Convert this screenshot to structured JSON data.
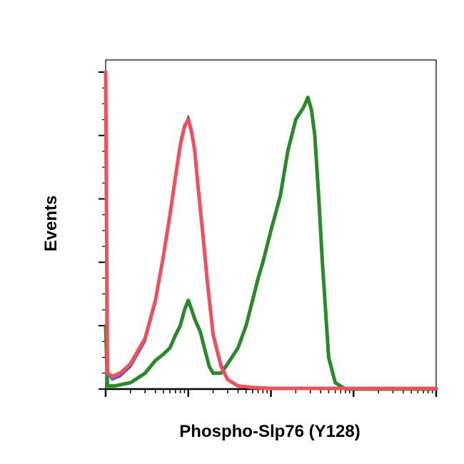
{
  "chart_data": {
    "type": "line",
    "title": "",
    "xlabel": "Phospho-Slp76 (Y128)",
    "ylabel": "Events",
    "xscale": "log",
    "xlim": [
      1,
      10000
    ],
    "ylim": [
      0,
      100
    ],
    "grid": false,
    "legend": "none",
    "series": [
      {
        "color": "#5b4fd9",
        "x": [
          1,
          1.05,
          1.2,
          1.5,
          2,
          3,
          4,
          5,
          6,
          7,
          8,
          9,
          10,
          11,
          12,
          13,
          15,
          17,
          20,
          25,
          30,
          40,
          60,
          100,
          10000
        ],
        "y": [
          100,
          5,
          3,
          4,
          7,
          15,
          27,
          41,
          54,
          66,
          76,
          82,
          86,
          82,
          76,
          66,
          50,
          35,
          18,
          8,
          3,
          1,
          0.5,
          0.2,
          0.2
        ]
      },
      {
        "color": "#2a8a2a",
        "x": [
          1,
          1.05,
          1.3,
          2,
          3,
          4,
          5,
          6,
          7,
          8,
          9,
          10,
          11,
          12,
          14,
          16,
          18,
          20,
          25,
          30,
          40,
          50,
          60,
          70,
          80,
          100,
          130,
          160,
          200,
          250,
          280,
          310,
          340,
          380,
          420,
          500,
          600,
          800,
          1000,
          2000,
          10000
        ],
        "y": [
          20,
          1,
          1,
          2,
          5,
          9,
          11,
          13,
          17,
          20,
          25,
          28,
          25,
          22,
          18,
          12,
          7,
          5,
          5,
          8,
          13,
          20,
          28,
          35,
          40,
          50,
          61,
          75,
          85,
          89,
          92,
          88,
          80,
          60,
          40,
          10,
          2,
          0,
          0,
          0,
          0
        ]
      },
      {
        "color": "#f0505a",
        "x": [
          1,
          1.05,
          1.2,
          1.5,
          2,
          3,
          4,
          5,
          6,
          7,
          8,
          9,
          10,
          11,
          12,
          13,
          15,
          17,
          20,
          25,
          30,
          40,
          60,
          100,
          10000
        ],
        "y": [
          100,
          5,
          4,
          5,
          8,
          16,
          28,
          42,
          55,
          67,
          77,
          83,
          85,
          81,
          75,
          65,
          49,
          34,
          17,
          7,
          3,
          1,
          0.5,
          0.2,
          0.2
        ]
      }
    ]
  }
}
